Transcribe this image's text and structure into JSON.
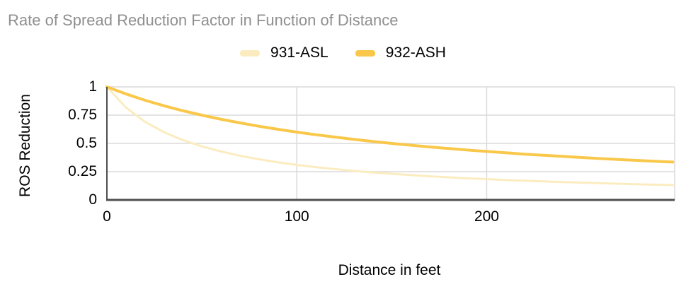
{
  "chart_data": {
    "type": "line",
    "title": "Rate of Spread Reduction Factor in Function of Distance",
    "xlabel": "Distance in feet",
    "ylabel": "ROS Reduction",
    "xlim": [
      0,
      299
    ],
    "ylim": [
      0,
      1
    ],
    "x_ticks": [
      0,
      100,
      200
    ],
    "y_ticks": [
      0,
      0.25,
      0.5,
      0.75,
      1
    ],
    "grid": true,
    "legend_position": "top-center",
    "x": [
      0,
      10,
      20,
      30,
      40,
      50,
      60,
      70,
      80,
      90,
      100,
      110,
      120,
      130,
      140,
      150,
      160,
      170,
      180,
      190,
      200,
      210,
      220,
      230,
      240,
      250,
      260,
      270,
      280,
      290,
      298
    ],
    "series": [
      {
        "name": "931-ASL",
        "color": "#FBECC0",
        "stroke_width": 3,
        "values": [
          1.0,
          0.818,
          0.692,
          0.6,
          0.529,
          0.474,
          0.429,
          0.391,
          0.36,
          0.333,
          0.31,
          0.29,
          0.273,
          0.257,
          0.243,
          0.231,
          0.22,
          0.209,
          0.2,
          0.191,
          0.184,
          0.176,
          0.17,
          0.164,
          0.158,
          0.153,
          0.148,
          0.143,
          0.138,
          0.134,
          0.131
        ]
      },
      {
        "name": "932-ASH",
        "color": "#F9C84A",
        "stroke_width": 4,
        "values": [
          1.0,
          0.938,
          0.882,
          0.833,
          0.789,
          0.75,
          0.714,
          0.682,
          0.652,
          0.625,
          0.6,
          0.577,
          0.556,
          0.536,
          0.517,
          0.5,
          0.484,
          0.469,
          0.455,
          0.441,
          0.429,
          0.417,
          0.405,
          0.395,
          0.385,
          0.375,
          0.366,
          0.357,
          0.349,
          0.341,
          0.335
        ]
      }
    ]
  },
  "style": {
    "background": "#FFFFFF",
    "title_color": "#8F8F8F",
    "text_color": "#000000",
    "grid_color": "#DADADA",
    "axis_color": "#4E4E4E"
  }
}
